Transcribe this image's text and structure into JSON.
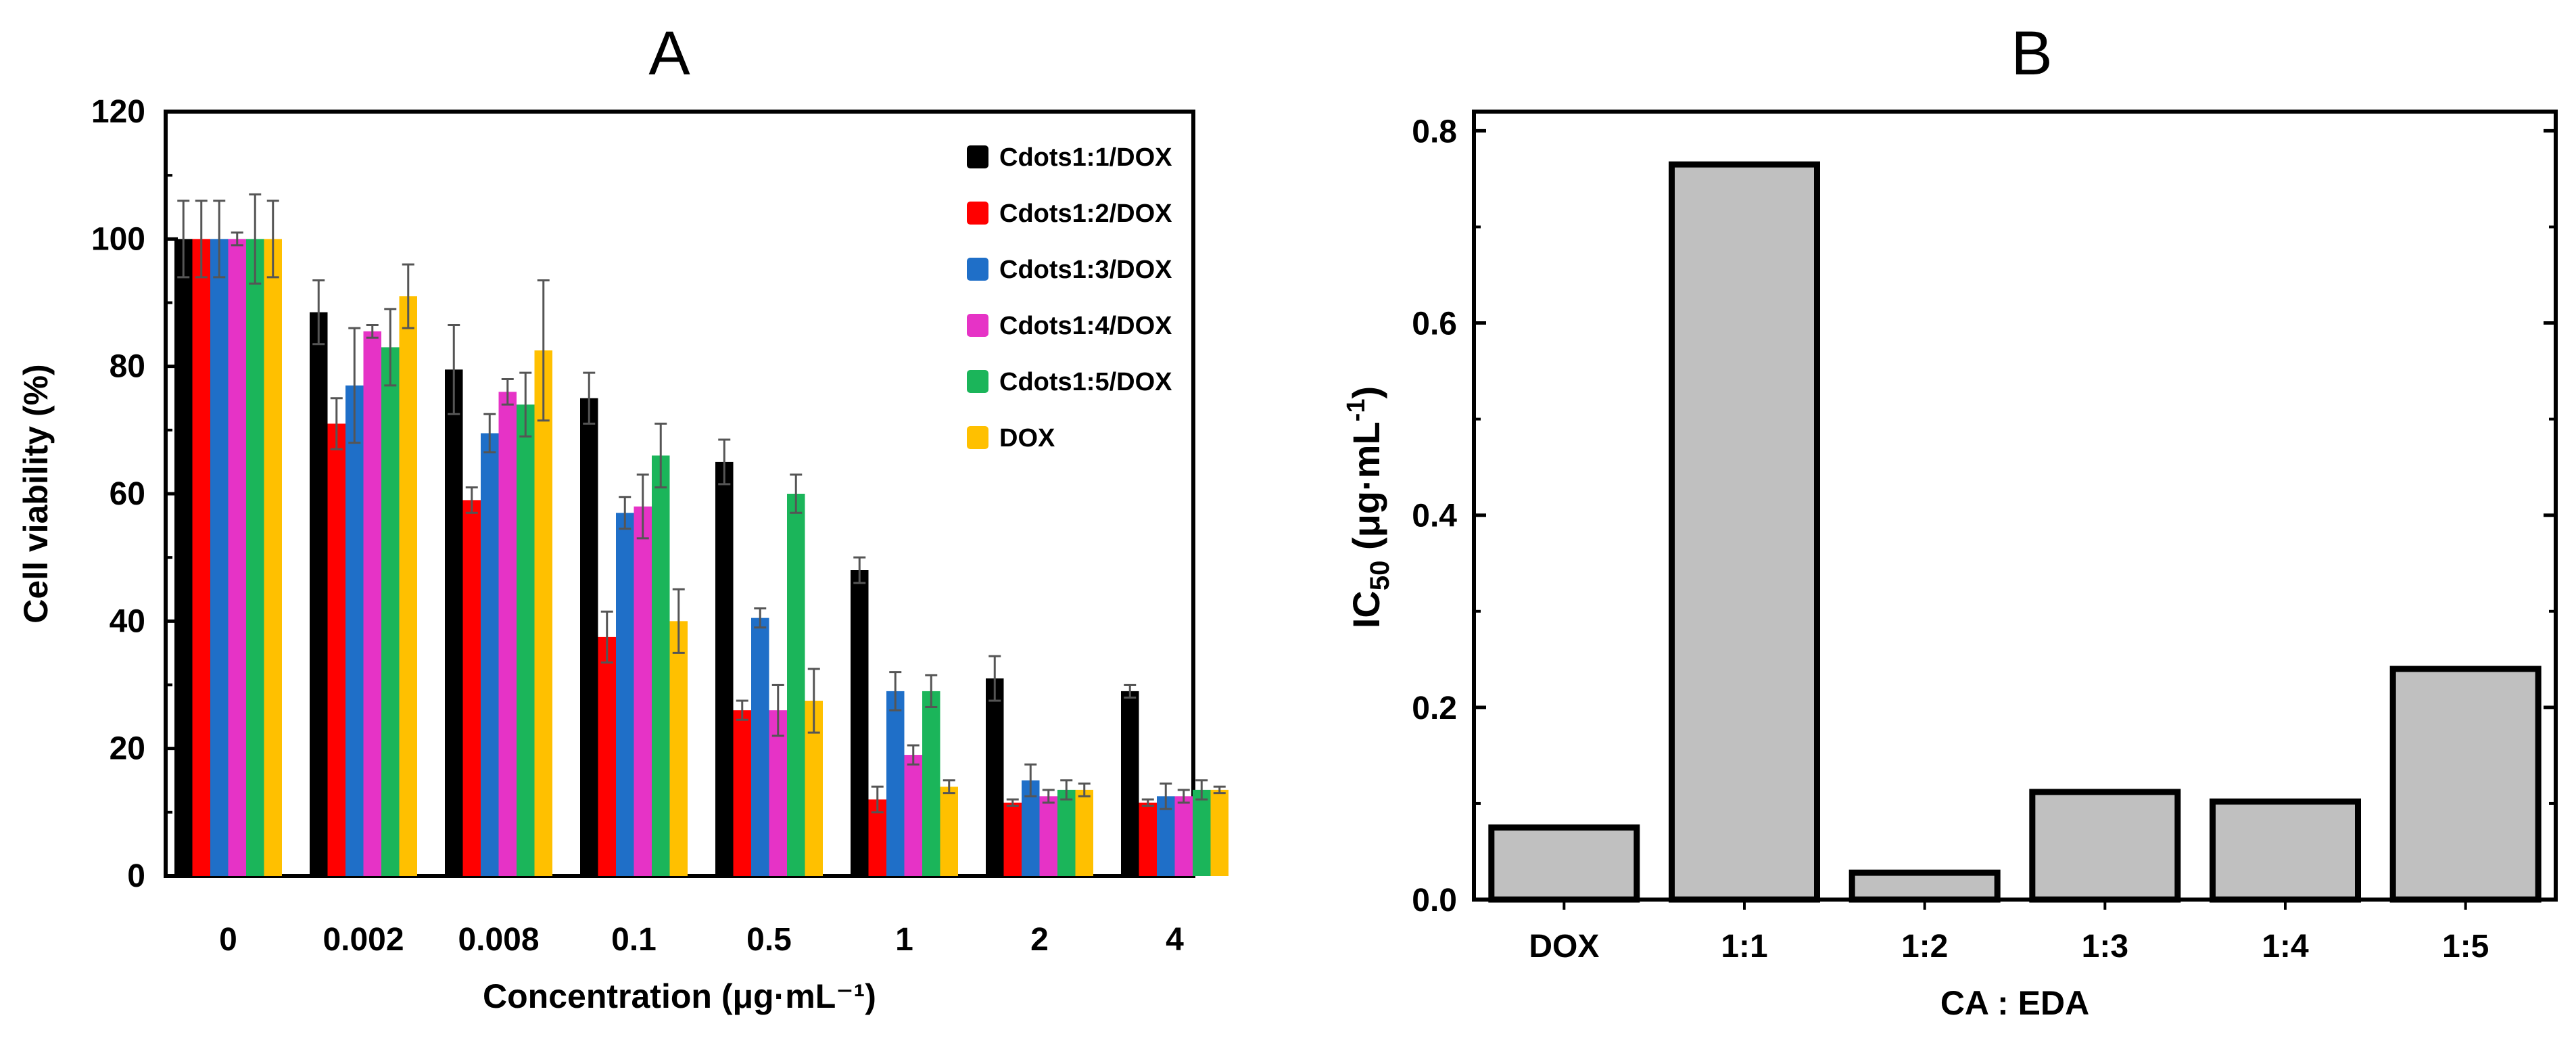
{
  "chart_data": [
    {
      "type": "bar",
      "title": "A",
      "xlabel": "Concentration (μg·mL⁻¹)",
      "ylabel": "Cell viability  (%)",
      "ylim": [
        0,
        120
      ],
      "yticks": [
        0,
        20,
        40,
        60,
        80,
        100,
        120
      ],
      "categories": [
        "0",
        "0.002",
        "0.008",
        "0.1",
        "0.5",
        "1",
        "2",
        "4"
      ],
      "legend_position": "top-right",
      "grid": false,
      "series": [
        {
          "name": "Cdots1:1/DOX",
          "color": "#000000",
          "values": [
            100,
            88.5,
            79.5,
            75,
            65,
            48,
            31,
            29
          ],
          "errors": [
            6,
            5,
            7,
            4,
            3.5,
            2,
            3.5,
            1
          ]
        },
        {
          "name": "Cdots1:2/DOX",
          "color": "#ff0000",
          "values": [
            100,
            71,
            59,
            37.5,
            26,
            12,
            11.5,
            11.5
          ],
          "errors": [
            6,
            4,
            2,
            4,
            1.5,
            2,
            0.5,
            0.5
          ]
        },
        {
          "name": "Cdots1:3/DOX",
          "color": "#1f6fc8",
          "values": [
            100,
            77,
            69.5,
            57,
            40.5,
            29,
            15,
            12.5
          ],
          "errors": [
            6,
            9,
            3,
            2.5,
            1.5,
            3,
            2.5,
            2
          ]
        },
        {
          "name": "Cdots1:4/DOX",
          "color": "#e633c6",
          "values": [
            100,
            85.5,
            76,
            58,
            26,
            19,
            12.5,
            12.5
          ],
          "errors": [
            1,
            1,
            2,
            5,
            4,
            1.5,
            1,
            1
          ]
        },
        {
          "name": "Cdots1:5/DOX",
          "color": "#1bb55a",
          "values": [
            100,
            83,
            74,
            66,
            60,
            29,
            13.5,
            13.5
          ],
          "errors": [
            7,
            6,
            5,
            5,
            3,
            2.5,
            1.5,
            1.5
          ]
        },
        {
          "name": "DOX",
          "color": "#ffc000",
          "values": [
            100,
            91,
            82.5,
            40,
            27.5,
            14,
            13.5,
            13.5
          ],
          "errors": [
            6,
            5,
            11,
            5,
            5,
            1,
            1,
            0.5
          ]
        }
      ]
    },
    {
      "type": "bar",
      "title": "B",
      "xlabel": "CA : EDA",
      "ylabel_main": "IC",
      "ylabel_sub": "50",
      "ylabel_unit": " (μg·mL",
      "ylabel_sup": "-1",
      "ylabel_close": ")",
      "ylim": [
        0,
        0.82
      ],
      "yticks": [
        "0.0",
        "0.2",
        "0.4",
        "0.6",
        "0.8"
      ],
      "ytick_values": [
        0,
        0.2,
        0.4,
        0.6,
        0.8
      ],
      "categories": [
        "DOX",
        "1:1",
        "1:2",
        "1:3",
        "1:4",
        "1:5"
      ],
      "values": [
        0.075,
        0.765,
        0.028,
        0.112,
        0.102,
        0.24
      ],
      "bar_color": "#c0c0c0",
      "grid": false
    }
  ]
}
